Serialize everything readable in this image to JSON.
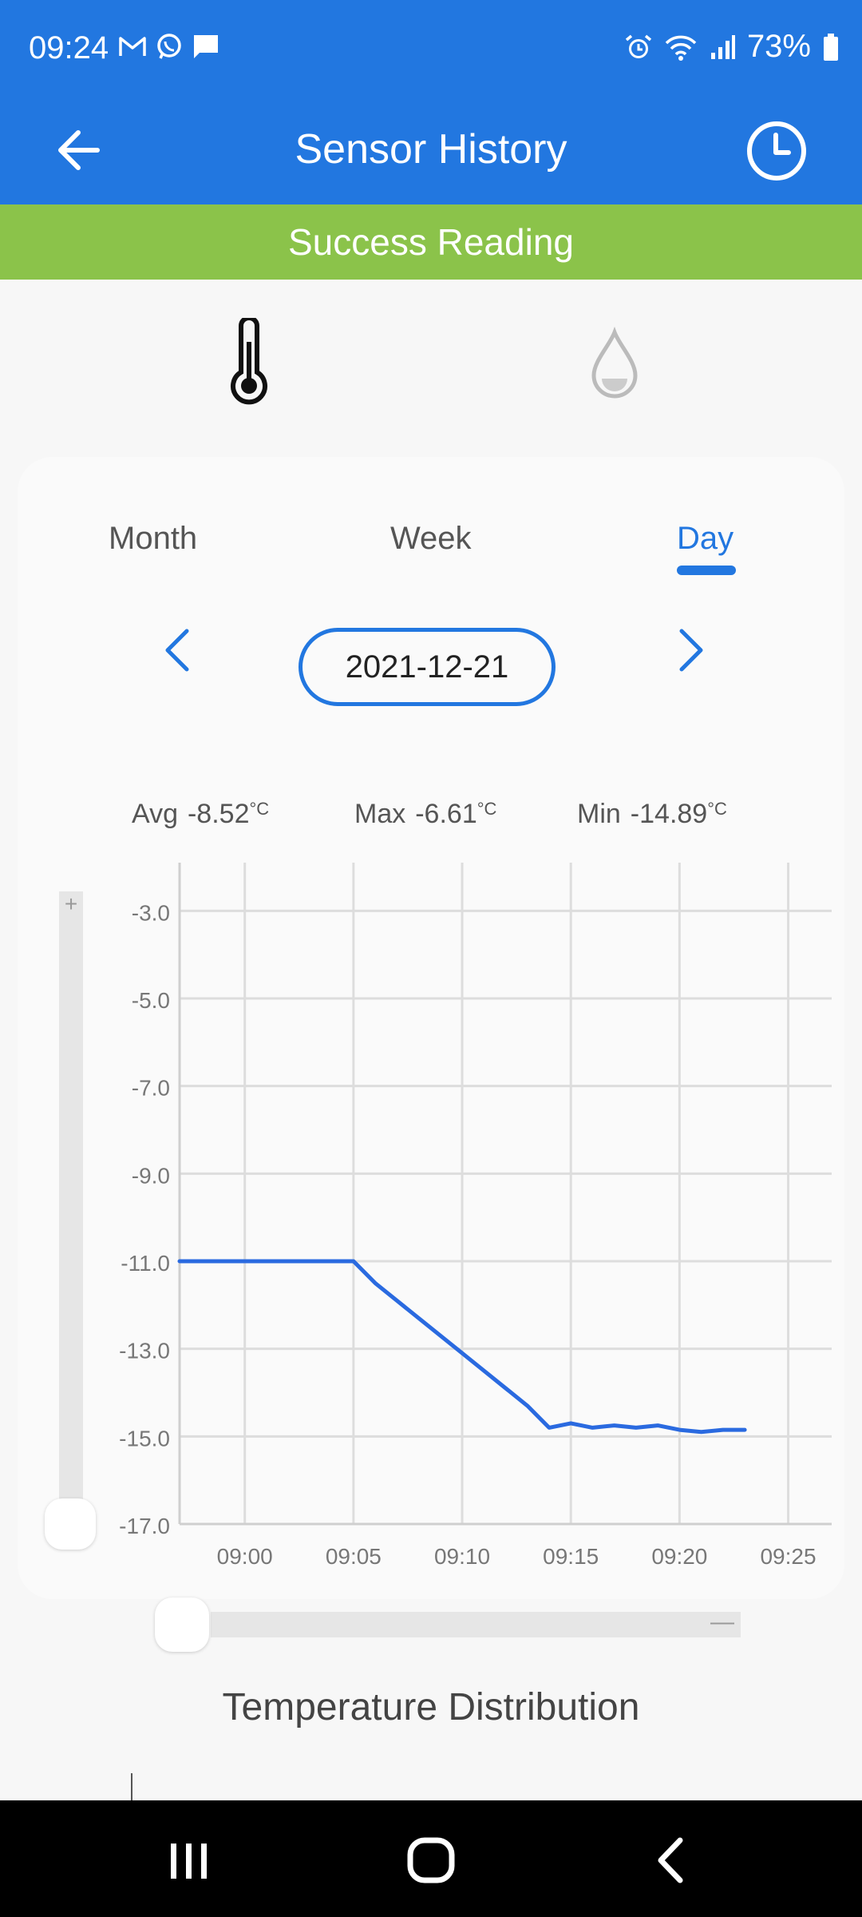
{
  "status_bar": {
    "time": "09:24",
    "battery": "73%",
    "left_icons": [
      "gmail-icon",
      "whatsapp-icon",
      "message-icon"
    ],
    "right_icons": [
      "alarm-icon",
      "wifi-icon",
      "signal-icon",
      "battery-icon"
    ]
  },
  "app_bar": {
    "title": "Sensor History",
    "back_icon": "back-arrow-icon",
    "history_icon": "clock-icon"
  },
  "banner": {
    "text": "Success Reading",
    "color": "#8bc34a"
  },
  "sensor_tabs": [
    {
      "icon": "thermometer-icon",
      "selected": true
    },
    {
      "icon": "water-drop-icon",
      "selected": false
    }
  ],
  "period_tabs": [
    "Month",
    "Week",
    "Day"
  ],
  "selected_period": "Day",
  "date": "2021-12-21",
  "stats": {
    "avg_label": "Avg",
    "avg_value": "-8.52",
    "max_label": "Max",
    "max_value": "-6.61",
    "min_label": "Min",
    "min_value": "-14.89",
    "unit": "°C"
  },
  "zoom": {
    "plus": "+",
    "minus": "—"
  },
  "chart_data": {
    "type": "line",
    "title": "",
    "xlabel": "",
    "ylabel": "",
    "x_ticks": [
      "09:00",
      "09:05",
      "09:10",
      "09:15",
      "09:20",
      "09:25"
    ],
    "y_ticks": [
      "-3.0",
      "-5.0",
      "-7.0",
      "-9.0",
      "-11.0",
      "-13.0",
      "-15.0",
      "-17.0"
    ],
    "ylim": [
      -17.0,
      -1.9
    ],
    "xlim": [
      "08:57",
      "09:27"
    ],
    "grid": true,
    "color": "#2a6ae0",
    "series": [
      {
        "points": [
          [
            "08:57",
            -11.0
          ],
          [
            "09:00",
            -11.0
          ],
          [
            "09:05",
            -11.0
          ],
          [
            "09:06",
            -11.5
          ],
          [
            "09:07",
            -11.9
          ],
          [
            "09:08",
            -12.3
          ],
          [
            "09:09",
            -12.7
          ],
          [
            "09:10",
            -13.1
          ],
          [
            "09:11",
            -13.5
          ],
          [
            "09:12",
            -13.9
          ],
          [
            "09:13",
            -14.3
          ],
          [
            "09:14",
            -14.8
          ],
          [
            "09:15",
            -14.7
          ],
          [
            "09:16",
            -14.8
          ],
          [
            "09:17",
            -14.75
          ],
          [
            "09:18",
            -14.8
          ],
          [
            "09:19",
            -14.75
          ],
          [
            "09:20",
            -14.85
          ],
          [
            "09:21",
            -14.9
          ],
          [
            "09:22",
            -14.85
          ],
          [
            "09:23",
            -14.85
          ]
        ]
      }
    ]
  },
  "distribution_title": "Temperature Distribution",
  "nav_bar": [
    "recents-icon",
    "home-icon",
    "back-icon"
  ]
}
